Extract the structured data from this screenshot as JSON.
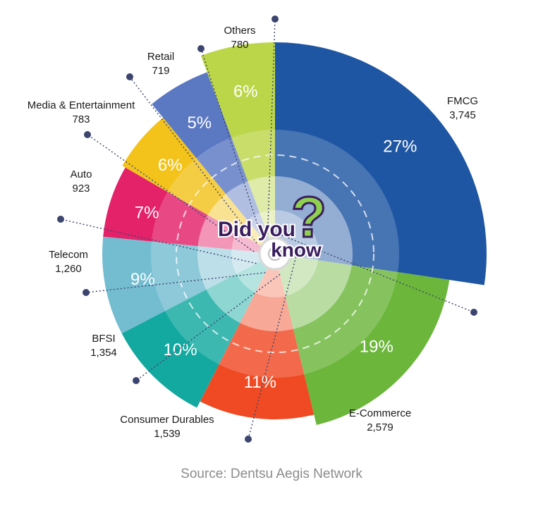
{
  "chart_data": {
    "type": "pie",
    "title": "",
    "segments": [
      {
        "label": "FMCG",
        "value": 3745,
        "value_label": "3,745",
        "percent": "27%",
        "color": "#1f56a3"
      },
      {
        "label": "E-Commerce",
        "value": 2579,
        "value_label": "2,579",
        "percent": "19%",
        "color": "#6cb63c"
      },
      {
        "label": "Consumer Durables",
        "value": 1539,
        "value_label": "1,539",
        "percent": "11%",
        "color": "#ef4a24"
      },
      {
        "label": "BFSI",
        "value": 1354,
        "value_label": "1,354",
        "percent": "10%",
        "color": "#13a9a0"
      },
      {
        "label": "Telecom",
        "value": 1260,
        "value_label": "1,260",
        "percent": "9%",
        "color": "#74bdd1"
      },
      {
        "label": "Auto",
        "value": 923,
        "value_label": "923",
        "percent": "7%",
        "color": "#e3226a"
      },
      {
        "label": "Media & Entertainment",
        "value": 783,
        "value_label": "783",
        "percent": "6%",
        "color": "#f3c31b"
      },
      {
        "label": "Retail",
        "value": 719,
        "value_label": "719",
        "percent": "5%",
        "color": "#5b78c2"
      },
      {
        "label": "Others",
        "value": 780,
        "value_label": "780",
        "percent": "6%",
        "color": "#bcd64a"
      }
    ],
    "center_badge": "Did you know",
    "source": "Source: Dentsu Aegis Network"
  }
}
